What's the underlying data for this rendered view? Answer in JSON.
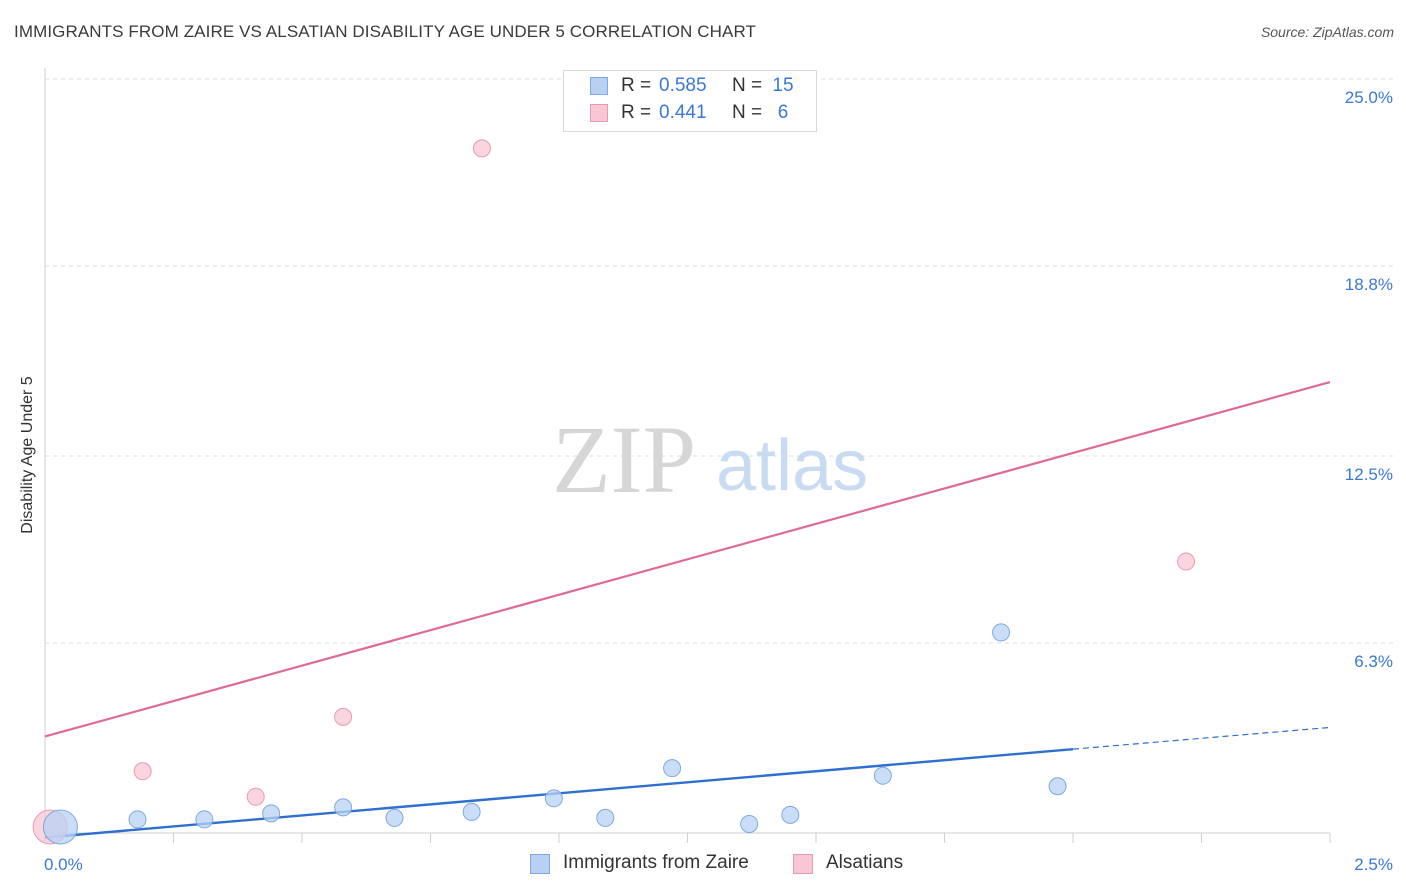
{
  "header": {
    "title": "IMMIGRANTS FROM ZAIRE VS ALSATIAN DISABILITY AGE UNDER 5 CORRELATION CHART",
    "source": "Source: ZipAtlas.com"
  },
  "watermark": {
    "zip": "ZIP",
    "atlas": "atlas"
  },
  "legend_top": [
    {
      "r_label": "R =",
      "r_value": "0.585",
      "n_label": "N =",
      "n_value": "15"
    },
    {
      "r_label": "R =",
      "r_value": "0.441",
      "n_label": "N =",
      "n_value": "6"
    }
  ],
  "legend_bottom": [
    {
      "label": "Immigrants from Zaire"
    },
    {
      "label": "Alsatians"
    }
  ],
  "colors": {
    "blue_fill": "#b8d1f3",
    "blue_stroke": "#7ea9e0",
    "blue_line": "#2f6fcf",
    "pink_fill": "#f8c6d4",
    "pink_stroke": "#e89ab0",
    "pink_line": "#e06b92",
    "tick_label": "#3b78d6",
    "grid": "#dddddd"
  },
  "chart_data": {
    "type": "scatter",
    "title": "IMMIGRANTS FROM ZAIRE VS ALSATIAN DISABILITY AGE UNDER 5 CORRELATION CHART",
    "ylabel": "Disability Age Under 5",
    "xlabel": "",
    "xlim": [
      0,
      2.5
    ],
    "ylim": [
      0,
      25.0
    ],
    "x_tick_labels": [
      "0.0%",
      "2.5%"
    ],
    "y_ticks": [
      6.3,
      12.5,
      18.8,
      25.0
    ],
    "y_tick_labels": [
      "6.3%",
      "12.5%",
      "18.8%",
      "25.0%"
    ],
    "grid": "horizontal dashed",
    "legend_position": "top-center and bottom",
    "series": [
      {
        "name": "Immigrants from Zaire",
        "R": 0.585,
        "N": 15,
        "points": [
          {
            "x": 0.03,
            "y": 0.2,
            "size": "large"
          },
          {
            "x": 0.18,
            "y": 0.45
          },
          {
            "x": 0.31,
            "y": 0.45
          },
          {
            "x": 0.44,
            "y": 0.65
          },
          {
            "x": 0.58,
            "y": 0.85
          },
          {
            "x": 0.68,
            "y": 0.5
          },
          {
            "x": 0.83,
            "y": 0.7
          },
          {
            "x": 0.99,
            "y": 1.15
          },
          {
            "x": 1.09,
            "y": 0.5
          },
          {
            "x": 1.22,
            "y": 2.15
          },
          {
            "x": 1.37,
            "y": 0.3
          },
          {
            "x": 1.45,
            "y": 0.6
          },
          {
            "x": 1.63,
            "y": 1.9
          },
          {
            "x": 1.86,
            "y": 6.65
          },
          {
            "x": 1.97,
            "y": 1.55
          }
        ],
        "trend": {
          "x0": 0.0,
          "y0": -0.15,
          "x1": 2.0,
          "y1": 2.78,
          "dashed_to_x": 2.5,
          "dashed_to_y": 3.5
        }
      },
      {
        "name": "Alsatians",
        "R": 0.441,
        "N": 6,
        "points": [
          {
            "x": 0.01,
            "y": 0.2,
            "size": "large"
          },
          {
            "x": 0.19,
            "y": 2.05
          },
          {
            "x": 0.41,
            "y": 1.2
          },
          {
            "x": 0.58,
            "y": 3.85
          },
          {
            "x": 0.85,
            "y": 22.7
          },
          {
            "x": 2.22,
            "y": 9.0
          }
        ],
        "trend": {
          "x0": 0.0,
          "y0": 3.2,
          "x1": 2.5,
          "y1": 14.95
        }
      }
    ]
  }
}
